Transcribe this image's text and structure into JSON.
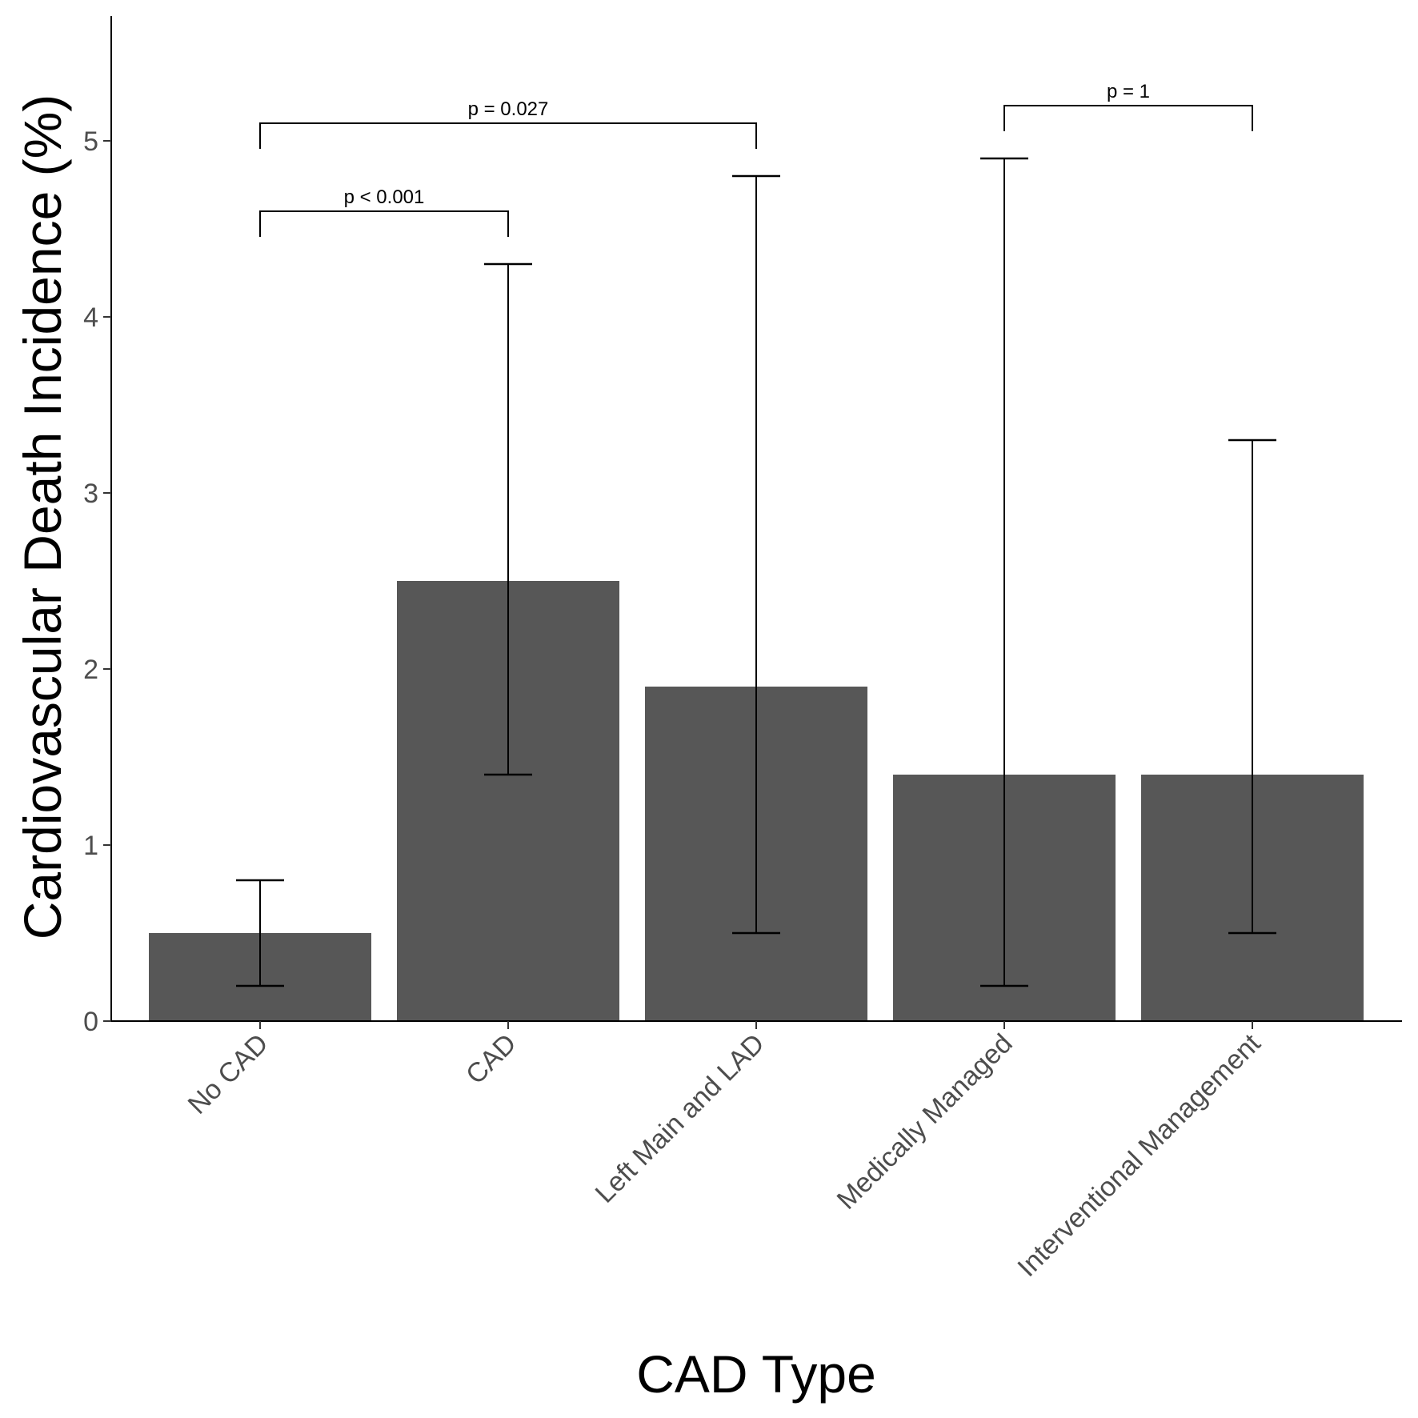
{
  "chart_data": {
    "type": "bar",
    "categories": [
      "No CAD",
      "CAD",
      "Left Main and LAD",
      "Medically Managed",
      "Interventional Management"
    ],
    "values": [
      0.5,
      2.5,
      1.9,
      1.4,
      1.4
    ],
    "error_low": [
      0.2,
      1.4,
      0.5,
      0.2,
      0.5
    ],
    "error_high": [
      0.8,
      4.3,
      4.8,
      4.9,
      3.3
    ],
    "xlabel": "CAD Type",
    "ylabel": "Cardiovascular Death Incidence (%)",
    "ylim": [
      0,
      5.75
    ],
    "yticks": [
      0,
      1,
      2,
      3,
      4,
      5
    ],
    "grid": false,
    "bar_color": "#575757",
    "comparisons": [
      {
        "from": 0,
        "to": 1,
        "label": "p < 0.001",
        "y": 4.6
      },
      {
        "from": 0,
        "to": 2,
        "label": "p = 0.027",
        "y": 5.1
      },
      {
        "from": 3,
        "to": 4,
        "label": "p = 1",
        "y": 5.2
      }
    ]
  }
}
